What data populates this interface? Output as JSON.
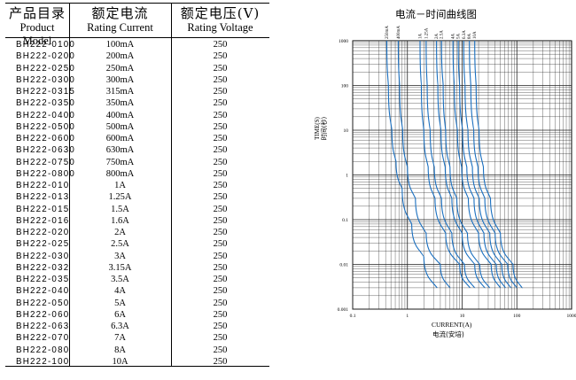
{
  "table": {
    "headers": [
      {
        "zh": "产品目录",
        "en": "Product Model"
      },
      {
        "zh": "额定电流",
        "en": "Rating Current"
      },
      {
        "zh": "额定电压(V)",
        "en": "Rating Voltage"
      }
    ],
    "rows": [
      [
        "BH222-0100",
        "100mA",
        "250"
      ],
      [
        "BH222-0200",
        "200mA",
        "250"
      ],
      [
        "BH222-0250",
        "250mA",
        "250"
      ],
      [
        "BH222-0300",
        "300mA",
        "250"
      ],
      [
        "BH222-0315",
        "315mA",
        "250"
      ],
      [
        "BH222-0350",
        "350mA",
        "250"
      ],
      [
        "BH222-0400",
        "400mA",
        "250"
      ],
      [
        "BH222-0500",
        "500mA",
        "250"
      ],
      [
        "BH222-0600",
        "600mA",
        "250"
      ],
      [
        "BH222-0630",
        "630mA",
        "250"
      ],
      [
        "BH222-0750",
        "750mA",
        "250"
      ],
      [
        "BH222-0800",
        "800mA",
        "250"
      ],
      [
        "BH222-010",
        "1A",
        "250"
      ],
      [
        "BH222-013",
        "1.25A",
        "250"
      ],
      [
        "BH222-015",
        "1.5A",
        "250"
      ],
      [
        "BH222-016",
        "1.6A",
        "250"
      ],
      [
        "BH222-020",
        "2A",
        "250"
      ],
      [
        "BH222-025",
        "2.5A",
        "250"
      ],
      [
        "BH222-030",
        "3A",
        "250"
      ],
      [
        "BH222-032",
        "3.15A",
        "250"
      ],
      [
        "BH222-035",
        "3.5A",
        "250"
      ],
      [
        "BH222-040",
        "4A",
        "250"
      ],
      [
        "BH222-050",
        "5A",
        "250"
      ],
      [
        "BH222-060",
        "6A",
        "250"
      ],
      [
        "BH222-063",
        "6.3A",
        "250"
      ],
      [
        "BH222-070",
        "7A",
        "250"
      ],
      [
        "BH222-080",
        "8A",
        "250"
      ],
      [
        "BH222-100",
        "10A",
        "250"
      ]
    ]
  },
  "chart_data": {
    "type": "line",
    "title": "电流－时间曲线图",
    "xlabel": "CURRENT(A)",
    "xlabel_zh": "电流(安培)",
    "ylabel": "TIME(S)",
    "ylabel_zh": "时间(秒)",
    "x_scale": "log",
    "y_scale": "log",
    "xlim": [
      0.1,
      1000
    ],
    "ylim": [
      0.001,
      1000
    ],
    "x_ticks": [
      "0.1",
      "1",
      "10",
      "100",
      "1000"
    ],
    "y_ticks": [
      "1000",
      "100",
      "10",
      "1",
      "0.1",
      "0.01",
      "0.001"
    ],
    "grid": true,
    "line_color": "#1a6fbf",
    "top_labels": [
      "250mA",
      "400mA",
      "1A",
      "1.25A",
      "2A",
      "2.5A",
      "4A",
      "5A",
      "6.3A",
      "8A",
      "10A"
    ],
    "series": [
      {
        "name": "250mA",
        "x": [
          0.42,
          0.45,
          0.52,
          0.62,
          0.8,
          1.2,
          2.0,
          3.5
        ],
        "y": [
          1000,
          100,
          10,
          2,
          0.5,
          0.08,
          0.015,
          0.003
        ]
      },
      {
        "name": "400mA",
        "x": [
          0.68,
          0.72,
          0.82,
          1.0,
          1.4,
          2.2,
          4.0,
          6.0
        ],
        "y": [
          1000,
          100,
          10,
          1.5,
          0.3,
          0.05,
          0.01,
          0.003
        ]
      },
      {
        "name": "1A",
        "x": [
          1.7,
          1.8,
          2.0,
          2.4,
          3.2,
          5.0,
          9.0,
          14.0
        ],
        "y": [
          1000,
          100,
          10,
          1.5,
          0.3,
          0.05,
          0.01,
          0.003
        ]
      },
      {
        "name": "1.25A",
        "x": [
          2.2,
          2.3,
          2.6,
          3.1,
          4.2,
          6.5,
          11.0,
          17.0
        ],
        "y": [
          1000,
          100,
          10,
          1.5,
          0.3,
          0.05,
          0.01,
          0.003
        ]
      },
      {
        "name": "2A",
        "x": [
          3.4,
          3.6,
          4.1,
          4.9,
          6.5,
          10.0,
          17.0,
          26.0
        ],
        "y": [
          1000,
          100,
          10,
          1.5,
          0.3,
          0.05,
          0.01,
          0.003
        ]
      },
      {
        "name": "2.5A",
        "x": [
          4.2,
          4.5,
          5.0,
          6.0,
          8.0,
          12.5,
          21.0,
          32.0
        ],
        "y": [
          1000,
          100,
          10,
          1.5,
          0.3,
          0.05,
          0.01,
          0.003
        ]
      },
      {
        "name": "4A",
        "x": [
          6.8,
          7.2,
          8.2,
          9.8,
          13.0,
          20.0,
          34.0,
          50.0
        ],
        "y": [
          1000,
          100,
          10,
          1.5,
          0.3,
          0.05,
          0.01,
          0.003
        ]
      },
      {
        "name": "5A",
        "x": [
          8.5,
          9.0,
          10.2,
          12.2,
          16.5,
          25.0,
          42.0,
          62.0
        ],
        "y": [
          1000,
          100,
          10,
          1.5,
          0.3,
          0.05,
          0.01,
          0.003
        ]
      },
      {
        "name": "6.3A",
        "x": [
          10.7,
          11.3,
          12.8,
          15.4,
          20.5,
          32.0,
          53.0,
          78.0
        ],
        "y": [
          1000,
          100,
          10,
          1.5,
          0.3,
          0.05,
          0.01,
          0.003
        ]
      },
      {
        "name": "8A",
        "x": [
          13.6,
          14.4,
          16.3,
          19.5,
          26.0,
          40.0,
          68.0,
          100.0
        ],
        "y": [
          1000,
          100,
          10,
          1.5,
          0.3,
          0.05,
          0.01,
          0.003
        ]
      },
      {
        "name": "10A",
        "x": [
          17.0,
          18.0,
          20.4,
          24.5,
          33.0,
          50.0,
          85.0,
          125.0
        ],
        "y": [
          1000,
          100,
          10,
          1.5,
          0.3,
          0.05,
          0.01,
          0.003
        ]
      }
    ]
  }
}
